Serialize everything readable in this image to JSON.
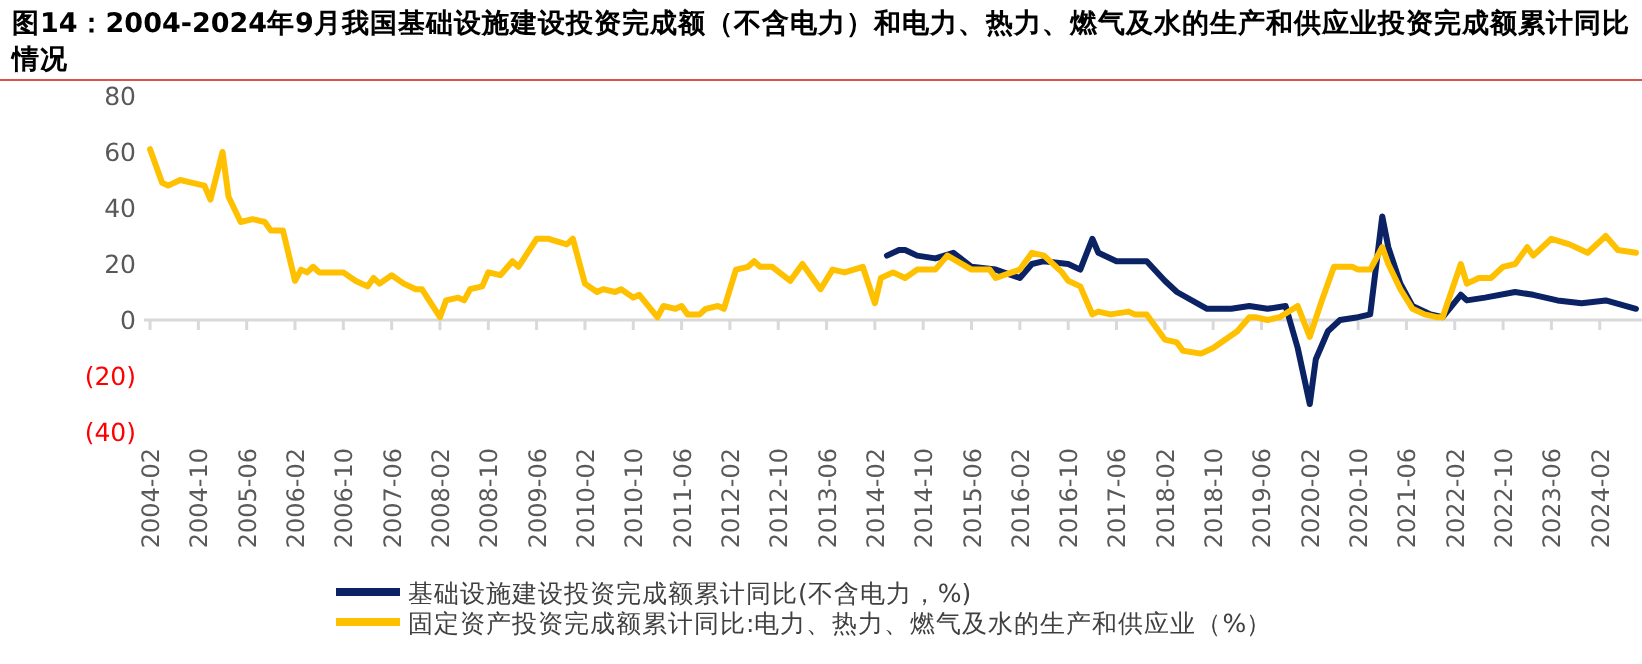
{
  "chart_data": {
    "type": "line",
    "title": "图14：2004-2024年9月我国基础设施建设投资完成额（不含电力）和电力、热力、燃气及水的生产和供应业投资完成额累计同比情况",
    "xlim": [
      "2004-01",
      "2024-09"
    ],
    "xticks": [
      "2004-02",
      "2004-10",
      "2005-06",
      "2006-02",
      "2006-10",
      "2007-06",
      "2008-02",
      "2008-10",
      "2009-06",
      "2010-02",
      "2010-10",
      "2011-06",
      "2012-02",
      "2012-10",
      "2013-06",
      "2014-02",
      "2014-10",
      "2015-06",
      "2016-02",
      "2016-10",
      "2017-06",
      "2018-02",
      "2018-10",
      "2019-06",
      "2020-02",
      "2020-10",
      "2021-06",
      "2022-02",
      "2022-10",
      "2023-06",
      "2024-02"
    ],
    "ylim": [
      -40,
      80
    ],
    "yticks": [
      {
        "value": -40,
        "label": "(40)"
      },
      {
        "value": -20,
        "label": "(20)"
      },
      0,
      20,
      40,
      60,
      80
    ],
    "legend": "bottom",
    "marker": "none",
    "line_style": "solid",
    "series": [
      {
        "name": "基础设施建设投资完成额累计同比(不含电力，%)",
        "color": "#0b2265",
        "x": [
          "2014-04",
          "2014-06",
          "2014-07",
          "2014-09",
          "2014-12",
          "2015-03",
          "2015-06",
          "2015-10",
          "2016-02",
          "2016-04",
          "2016-06",
          "2016-10",
          "2016-12",
          "2017-02",
          "2017-03",
          "2017-06",
          "2017-08",
          "2017-11",
          "2018-02",
          "2018-04",
          "2018-09",
          "2019-01",
          "2019-04",
          "2019-07",
          "2019-10",
          "2019-12",
          "2020-02",
          "2020-03",
          "2020-05",
          "2020-07",
          "2020-10",
          "2020-12",
          "2021-02",
          "2021-03",
          "2021-05",
          "2021-07",
          "2021-10",
          "2021-12",
          "2022-03",
          "2022-04",
          "2022-07",
          "2022-12",
          "2023-03",
          "2023-07",
          "2023-11",
          "2024-03",
          "2024-08"
        ],
        "values": [
          23,
          25,
          25,
          23,
          22,
          24,
          19,
          18,
          15,
          20,
          21,
          20,
          18,
          29,
          24,
          21,
          21,
          21,
          14,
          10,
          4,
          4,
          5,
          4,
          5,
          -10,
          -30,
          -14,
          -4,
          0,
          1,
          2,
          37,
          26,
          13,
          5,
          2,
          1,
          9,
          7,
          8,
          10,
          9,
          7,
          6,
          7,
          4
        ]
      },
      {
        "name": "固定资产投资完成额累计同比:电力、热力、燃气及水的生产和供应业（%）",
        "color": "#ffc000",
        "x": [
          "2004-02",
          "2004-04",
          "2004-05",
          "2004-07",
          "2004-09",
          "2004-11",
          "2004-12",
          "2005-02",
          "2005-03",
          "2005-05",
          "2005-07",
          "2005-09",
          "2005-10",
          "2005-12",
          "2006-02",
          "2006-03",
          "2006-04",
          "2006-05",
          "2006-06",
          "2006-09",
          "2006-10",
          "2006-12",
          "2007-02",
          "2007-03",
          "2007-04",
          "2007-06",
          "2007-08",
          "2007-10",
          "2007-11",
          "2008-02",
          "2008-03",
          "2008-05",
          "2008-06",
          "2008-07",
          "2008-09",
          "2008-10",
          "2008-12",
          "2009-02",
          "2009-03",
          "2009-06",
          "2009-08",
          "2009-11",
          "2009-12",
          "2010-02",
          "2010-04",
          "2010-05",
          "2010-07",
          "2010-08",
          "2010-10",
          "2010-11",
          "2011-02",
          "2011-03",
          "2011-05",
          "2011-06",
          "2011-07",
          "2011-09",
          "2011-10",
          "2011-12",
          "2012-01",
          "2012-03",
          "2012-05",
          "2012-06",
          "2012-07",
          "2012-09",
          "2012-12",
          "2013-02",
          "2013-04",
          "2013-05",
          "2013-07",
          "2013-09",
          "2013-12",
          "2014-02",
          "2014-03",
          "2014-05",
          "2014-07",
          "2014-09",
          "2014-12",
          "2015-02",
          "2015-06",
          "2015-09",
          "2015-10",
          "2016-02",
          "2016-04",
          "2016-06",
          "2016-09",
          "2016-10",
          "2016-12",
          "2017-02",
          "2017-03",
          "2017-05",
          "2017-08",
          "2017-09",
          "2017-11",
          "2018-02",
          "2018-04",
          "2018-05",
          "2018-08",
          "2018-10",
          "2019-02",
          "2019-04",
          "2019-05",
          "2019-07",
          "2019-09",
          "2019-12",
          "2020-02",
          "2020-04",
          "2020-06",
          "2020-09",
          "2020-10",
          "2020-12",
          "2021-02",
          "2021-03",
          "2021-05",
          "2021-07",
          "2021-09",
          "2021-11",
          "2021-12",
          "2022-03",
          "2022-04",
          "2022-06",
          "2022-08",
          "2022-10",
          "2022-12",
          "2023-02",
          "2023-03",
          "2023-06",
          "2023-09",
          "2023-12",
          "2024-03",
          "2024-05",
          "2024-08"
        ],
        "values": [
          61,
          49,
          48,
          50,
          49,
          48,
          43,
          60,
          44,
          35,
          36,
          35,
          32,
          32,
          14,
          18,
          17,
          19,
          17,
          17,
          17,
          14,
          12,
          15,
          13,
          16,
          13,
          11,
          11,
          1,
          7,
          8,
          7,
          11,
          12,
          17,
          16,
          21,
          19,
          29,
          29,
          27,
          29,
          13,
          10,
          11,
          10,
          11,
          8,
          9,
          1,
          5,
          4,
          5,
          2,
          2,
          4,
          5,
          4,
          18,
          19,
          21,
          19,
          19,
          14,
          20,
          14,
          11,
          18,
          17,
          19,
          6,
          15,
          17,
          15,
          18,
          18,
          23,
          18,
          18,
          15,
          18,
          24,
          23,
          17,
          14,
          12,
          2,
          3,
          2,
          3,
          2,
          2,
          -7,
          -8,
          -11,
          -12,
          -10,
          -4,
          1,
          1,
          0,
          1,
          5,
          -6,
          7,
          19,
          19,
          18,
          18,
          26,
          20,
          11,
          4,
          2,
          1,
          1,
          20,
          13,
          15,
          15,
          19,
          20,
          26,
          23,
          29,
          27,
          24,
          30,
          25,
          24
        ]
      }
    ]
  }
}
